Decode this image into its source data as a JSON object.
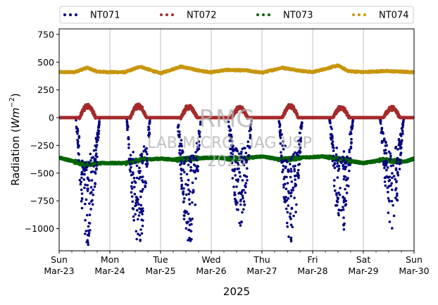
{
  "chart_data": {
    "type": "scatter",
    "xlabel": "2025",
    "ylabel": "Radiation (Wm⁻²)",
    "ylabel_parts": {
      "text": "Radiation (",
      "italic": "Wm",
      "sup": "−2",
      "close": ")"
    },
    "ylim": [
      -1200,
      800
    ],
    "xlim": [
      0,
      7
    ],
    "grid": "x-only",
    "legend_placement": "top, above plot",
    "yticks": [
      {
        "value": 750,
        "label": "750"
      },
      {
        "value": 500,
        "label": "500"
      },
      {
        "value": 250,
        "label": "250"
      },
      {
        "value": 0,
        "label": "0"
      },
      {
        "value": -250,
        "label": "−250"
      },
      {
        "value": -500,
        "label": "−500"
      },
      {
        "value": -750,
        "label": "−750"
      },
      {
        "value": -1000,
        "label": "−1000"
      }
    ],
    "xticks": [
      {
        "value": 0,
        "day": "Sun",
        "date": "Mar-23"
      },
      {
        "value": 1,
        "day": "Mon",
        "date": "Mar-24"
      },
      {
        "value": 2,
        "day": "Tue",
        "date": "Mar-25"
      },
      {
        "value": 3,
        "day": "Wed",
        "date": "Mar-26"
      },
      {
        "value": 4,
        "day": "Thu",
        "date": "Mar-27"
      },
      {
        "value": 5,
        "day": "Fri",
        "date": "Mar-28"
      },
      {
        "value": 6,
        "day": "Sat",
        "date": "Mar-29"
      },
      {
        "value": 7,
        "day": "Sun",
        "date": "Mar-30"
      }
    ],
    "series": [
      {
        "name": "NT071",
        "color": "#000080",
        "baseline": 0,
        "daily_minimum": [
          -1150,
          -1160,
          -1170,
          -980,
          -1120,
          -1080,
          -1000
        ],
        "daytime_window": [
          0.33,
          0.8
        ]
      },
      {
        "name": "NT072",
        "color": "#a52a2a",
        "baseline": 0,
        "daily_maximum": [
          120,
          120,
          110,
          100,
          120,
          100,
          100
        ],
        "daytime_window": [
          0.4,
          0.72
        ]
      },
      {
        "name": "NT073",
        "color": "#006400",
        "mean_profile": [
          [
            0,
            -360
          ],
          [
            0.5,
            -420
          ],
          [
            0.9,
            -410
          ],
          [
            1.3,
            -410
          ],
          [
            1.6,
            -380
          ],
          [
            2.0,
            -370
          ],
          [
            2.3,
            -380
          ],
          [
            2.6,
            -370
          ],
          [
            3.0,
            -360
          ],
          [
            3.4,
            -370
          ],
          [
            3.8,
            -360
          ],
          [
            4.0,
            -350
          ],
          [
            4.4,
            -380
          ],
          [
            4.8,
            -360
          ],
          [
            5.2,
            -350
          ],
          [
            5.6,
            -380
          ],
          [
            6.0,
            -410
          ],
          [
            6.4,
            -380
          ],
          [
            6.8,
            -400
          ],
          [
            7.0,
            -370
          ]
        ]
      },
      {
        "name": "NT074",
        "color": "#c8960c",
        "mean_profile": [
          [
            0,
            410
          ],
          [
            0.3,
            410
          ],
          [
            0.55,
            450
          ],
          [
            0.75,
            415
          ],
          [
            1.0,
            410
          ],
          [
            1.3,
            410
          ],
          [
            1.6,
            460
          ],
          [
            1.85,
            420
          ],
          [
            2.0,
            400
          ],
          [
            2.4,
            460
          ],
          [
            2.8,
            420
          ],
          [
            3.0,
            410
          ],
          [
            3.3,
            430
          ],
          [
            3.7,
            425
          ],
          [
            4.0,
            405
          ],
          [
            4.4,
            450
          ],
          [
            4.8,
            420
          ],
          [
            5.0,
            410
          ],
          [
            5.5,
            470
          ],
          [
            5.7,
            420
          ],
          [
            6.0,
            410
          ],
          [
            6.4,
            420
          ],
          [
            6.7,
            415
          ],
          [
            7.0,
            410
          ]
        ]
      }
    ]
  },
  "watermark": {
    "line1": "RMG",
    "line2": "LAB MICRO - IAG USP",
    "line3": "2025"
  }
}
